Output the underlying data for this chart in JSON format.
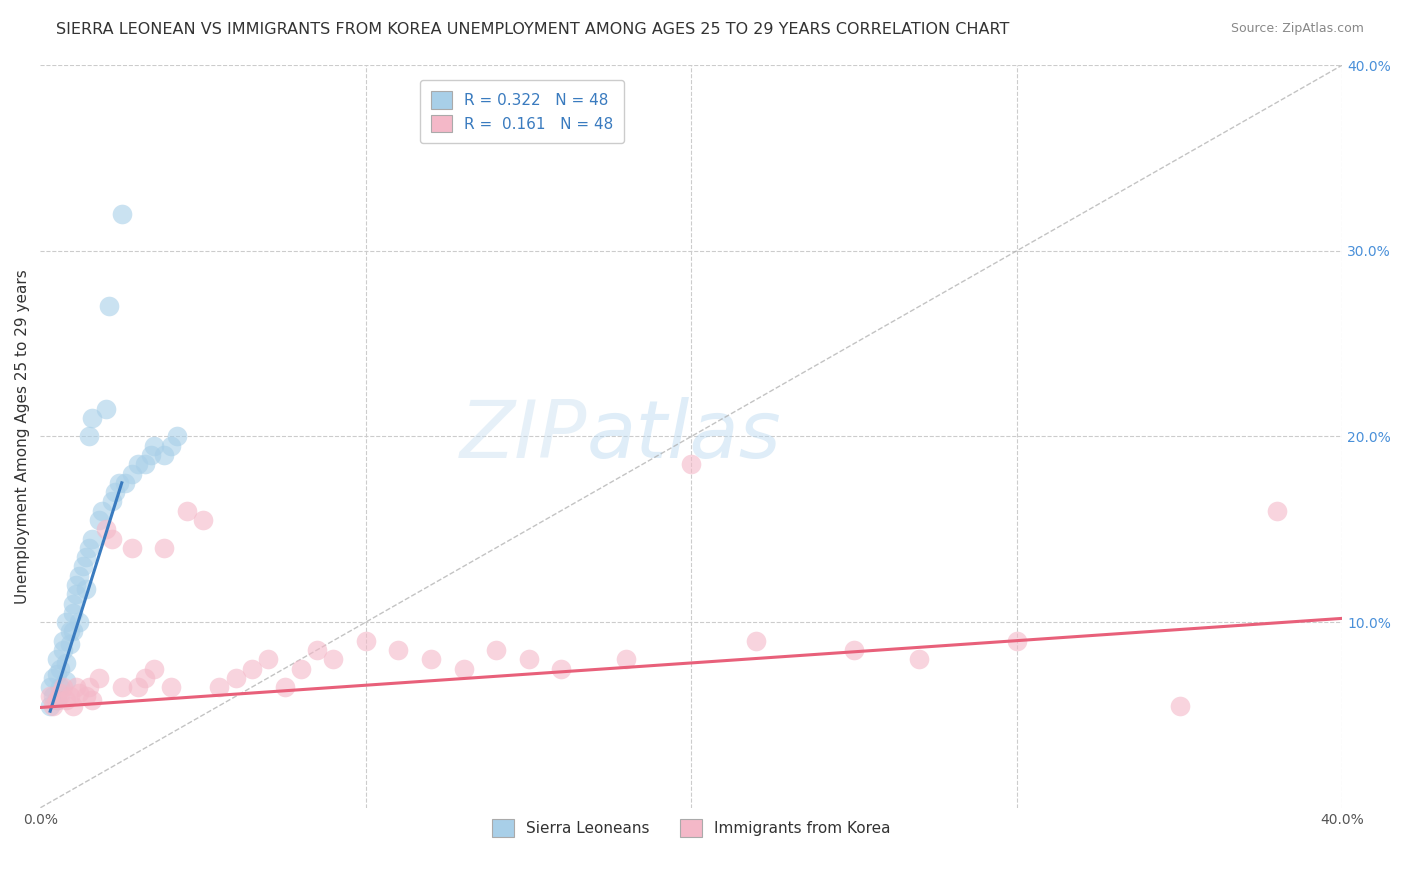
{
  "title": "SIERRA LEONEAN VS IMMIGRANTS FROM KOREA UNEMPLOYMENT AMONG AGES 25 TO 29 YEARS CORRELATION CHART",
  "source": "Source: ZipAtlas.com",
  "ylabel": "Unemployment Among Ages 25 to 29 years",
  "xlim": [
    0.0,
    0.4
  ],
  "ylim": [
    0.0,
    0.4
  ],
  "xticks": [
    0.0,
    0.1,
    0.2,
    0.3,
    0.4
  ],
  "yticks": [
    0.0,
    0.1,
    0.2,
    0.3,
    0.4
  ],
  "xticklabels": [
    "0.0%",
    "",
    "",
    "",
    "40.0%"
  ],
  "right_yticklabels": [
    "10.0%",
    "20.0%",
    "30.0%",
    "40.0%"
  ],
  "right_yticks": [
    0.1,
    0.2,
    0.3,
    0.4
  ],
  "blue_R": "R = 0.322",
  "blue_N": "N = 48",
  "pink_R": "R =  0.161",
  "pink_N": "N = 48",
  "blue_color": "#a8cfe8",
  "pink_color": "#f4b8c8",
  "blue_line_color": "#3a7bbf",
  "pink_line_color": "#e8607a",
  "legend_blue_label": "Sierra Leoneans",
  "legend_pink_label": "Immigrants from Korea",
  "watermark_zip": "ZIP",
  "watermark_atlas": "atlas",
  "blue_scatter_x": [
    0.003,
    0.003,
    0.004,
    0.004,
    0.005,
    0.005,
    0.005,
    0.006,
    0.006,
    0.006,
    0.007,
    0.007,
    0.008,
    0.008,
    0.008,
    0.009,
    0.009,
    0.01,
    0.01,
    0.01,
    0.011,
    0.011,
    0.012,
    0.012,
    0.013,
    0.014,
    0.014,
    0.015,
    0.015,
    0.016,
    0.016,
    0.018,
    0.019,
    0.02,
    0.021,
    0.022,
    0.023,
    0.024,
    0.025,
    0.026,
    0.028,
    0.03,
    0.032,
    0.034,
    0.035,
    0.038,
    0.04,
    0.042
  ],
  "blue_scatter_y": [
    0.065,
    0.055,
    0.07,
    0.06,
    0.072,
    0.058,
    0.08,
    0.075,
    0.065,
    0.06,
    0.085,
    0.09,
    0.078,
    0.068,
    0.1,
    0.095,
    0.088,
    0.105,
    0.11,
    0.095,
    0.115,
    0.12,
    0.125,
    0.1,
    0.13,
    0.135,
    0.118,
    0.14,
    0.2,
    0.21,
    0.145,
    0.155,
    0.16,
    0.215,
    0.27,
    0.165,
    0.17,
    0.175,
    0.32,
    0.175,
    0.18,
    0.185,
    0.185,
    0.19,
    0.195,
    0.19,
    0.195,
    0.2
  ],
  "blue_line_x": [
    0.003,
    0.025
  ],
  "blue_line_y": [
    0.052,
    0.175
  ],
  "pink_scatter_x": [
    0.003,
    0.004,
    0.005,
    0.006,
    0.007,
    0.008,
    0.009,
    0.01,
    0.011,
    0.012,
    0.014,
    0.015,
    0.016,
    0.018,
    0.02,
    0.022,
    0.025,
    0.028,
    0.03,
    0.032,
    0.035,
    0.038,
    0.04,
    0.045,
    0.05,
    0.055,
    0.06,
    0.065,
    0.07,
    0.075,
    0.08,
    0.085,
    0.09,
    0.1,
    0.11,
    0.12,
    0.13,
    0.14,
    0.15,
    0.16,
    0.18,
    0.2,
    0.22,
    0.25,
    0.27,
    0.3,
    0.35,
    0.38
  ],
  "pink_scatter_y": [
    0.06,
    0.055,
    0.058,
    0.062,
    0.065,
    0.058,
    0.06,
    0.055,
    0.065,
    0.062,
    0.06,
    0.065,
    0.058,
    0.07,
    0.15,
    0.145,
    0.065,
    0.14,
    0.065,
    0.07,
    0.075,
    0.14,
    0.065,
    0.16,
    0.155,
    0.065,
    0.07,
    0.075,
    0.08,
    0.065,
    0.075,
    0.085,
    0.08,
    0.09,
    0.085,
    0.08,
    0.075,
    0.085,
    0.08,
    0.075,
    0.08,
    0.185,
    0.09,
    0.085,
    0.08,
    0.09,
    0.055,
    0.16
  ],
  "pink_line_x": [
    0.0,
    0.4
  ],
  "pink_line_y": [
    0.054,
    0.102
  ],
  "title_fontsize": 11.5,
  "axis_label_fontsize": 11,
  "tick_fontsize": 10,
  "legend_fontsize": 11,
  "right_tick_color": "#4a90d9"
}
